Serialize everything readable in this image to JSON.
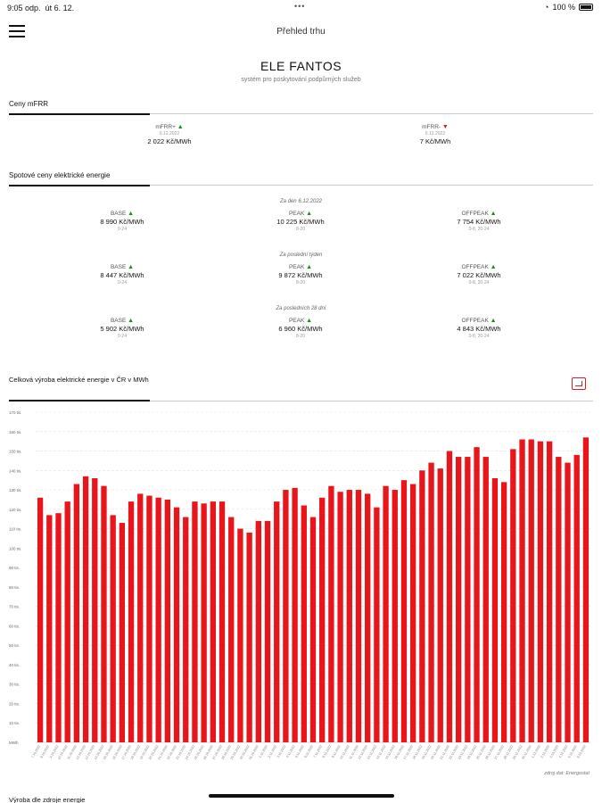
{
  "status": {
    "time": "9:05 odp.",
    "date": "út 6. 12.",
    "dots": "•••",
    "wifi": "◔",
    "battery": "100 %"
  },
  "nav": {
    "title": "Přehled trhu"
  },
  "app": {
    "title": "ELE FANTOS",
    "subtitle": "systém pro poskytování podpůrných služeb"
  },
  "mfrr": {
    "header": "Ceny mFRR",
    "plus": {
      "name": "mFRR+",
      "trend": "up",
      "date": "6.12.2022",
      "value": "2 022 Kč/MWh"
    },
    "minus": {
      "name": "mFRR-",
      "trend": "down",
      "date": "6.12.2022",
      "value": "7 Kč/MWh"
    }
  },
  "spot": {
    "header": "Spotové ceny elektrické energie",
    "periods": [
      {
        "label": "Za den 6.12.2022",
        "base": {
          "name": "BASE",
          "value": "8 990 Kč/MWh",
          "hours": "0-24"
        },
        "peak": {
          "name": "PEAK",
          "value": "10 225 Kč/MWh",
          "hours": "8-20"
        },
        "offpeak": {
          "name": "OFFPEAK",
          "value": "7 754 Kč/MWh",
          "hours": "0-8, 20-24"
        }
      },
      {
        "label": "Za poslední týden",
        "base": {
          "name": "BASE",
          "value": "8 447 Kč/MWh",
          "hours": "0-24"
        },
        "peak": {
          "name": "PEAK",
          "value": "9 872 Kč/MWh",
          "hours": "8-20"
        },
        "offpeak": {
          "name": "OFFPEAK",
          "value": "7 022 Kč/MWh",
          "hours": "0-8, 20-24"
        }
      },
      {
        "label": "Za posledních 28 dní",
        "base": {
          "name": "BASE",
          "value": "5 902 Kč/MWh",
          "hours": "0-24"
        },
        "peak": {
          "name": "PEAK",
          "value": "6 960 Kč/MWh",
          "hours": "8-20"
        },
        "offpeak": {
          "name": "OFFPEAK",
          "value": "4 843 Kč/MWh",
          "hours": "0-8, 20-24"
        }
      }
    ]
  },
  "chart_section": {
    "title": "Celková výroba elektrické energie v ČR v MWh",
    "source": "zdroj dat: Energostat"
  },
  "next_section": {
    "title": "Výroba dle zdroje energie"
  },
  "colors": {
    "bar": "#e8151b",
    "up": "#1c8b1c",
    "down": "#d42020"
  },
  "chart_data": {
    "type": "bar",
    "ylabel": "",
    "xlabel": "",
    "ylim": [
      0,
      170000
    ],
    "y_ticks": [
      "MWh",
      "10 tis.",
      "20 tis.",
      "30 tis.",
      "40 tis.",
      "50 tis.",
      "60 tis.",
      "70 tis.",
      "80 tis.",
      "90 tis.",
      "100 tis.",
      "110 tis.",
      "120 tis.",
      "130 tis.",
      "140 tis.",
      "150 tis.",
      "160 tis.",
      "170 tis."
    ],
    "grid": true,
    "categories": [
      "7.10.2022",
      "8.10.2022",
      "9.10.2022",
      "10.10.2022",
      "11.10.2022",
      "12.10.2022",
      "13.10.2022",
      "14.10.2022",
      "15.10.2022",
      "16.10.2022",
      "17.10.2022",
      "18.10.2022",
      "19.10.2022",
      "20.10.2022",
      "21.10.2022",
      "22.10.2022",
      "23.10.2022",
      "24.10.2022",
      "25.10.2022",
      "26.10.2022",
      "27.10.2022",
      "28.10.2022",
      "29.10.2022",
      "30.10.2022",
      "31.10.2022",
      "1.11.2022",
      "2.11.2022",
      "3.11.2022",
      "4.11.2022",
      "5.11.2022",
      "6.11.2022",
      "7.11.2022",
      "8.11.2022",
      "9.11.2022",
      "10.11.2022",
      "11.11.2022",
      "12.11.2022",
      "13.11.2022",
      "14.11.2022",
      "15.11.2022",
      "16.11.2022",
      "17.11.2022",
      "18.11.2022",
      "19.11.2022",
      "20.11.2022",
      "21.11.2022",
      "22.11.2022",
      "23.11.2022",
      "24.11.2022",
      "25.11.2022",
      "26.11.2022",
      "27.11.2022",
      "28.11.2022",
      "29.11.2022",
      "30.11.2022",
      "1.12.2022",
      "2.12.2022",
      "3.12.2022",
      "4.12.2022",
      "5.12.2022",
      "6.12.2022"
    ],
    "values": [
      126000,
      117000,
      118000,
      124000,
      133000,
      137000,
      136000,
      132000,
      117000,
      113000,
      124000,
      128000,
      127000,
      126000,
      125000,
      121000,
      116000,
      124000,
      123000,
      124000,
      124000,
      116000,
      110000,
      108000,
      114000,
      114000,
      124000,
      130000,
      131000,
      122000,
      116000,
      126000,
      132000,
      129000,
      130000,
      130000,
      128000,
      121000,
      132000,
      130000,
      135000,
      133000,
      140000,
      144000,
      141000,
      150000,
      147000,
      147000,
      152000,
      147000,
      136000,
      134000,
      151000,
      156000,
      156000,
      155000,
      155000,
      147000,
      144000,
      148000,
      157000
    ]
  }
}
